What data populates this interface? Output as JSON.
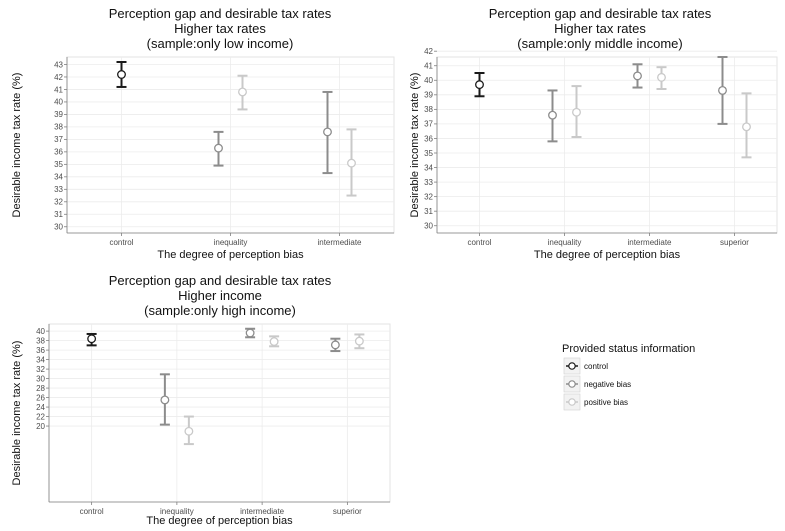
{
  "chart_data": [
    {
      "type": "scatter",
      "title": "Perception gap and desirable tax rates",
      "subtitle": [
        "Higher tax rates",
        "(sample:only low income)"
      ],
      "xlabel": "The degree of perception bias",
      "ylabel": "Desirable income tax rate (%)",
      "categories": [
        "control",
        "inequality",
        "intermediate"
      ],
      "ylim": [
        29.5,
        43.6
      ],
      "yticks": [
        30,
        31,
        32,
        33,
        34,
        35,
        36,
        37,
        38,
        39,
        40,
        41,
        42,
        43
      ],
      "grid": true,
      "series": [
        {
          "name": "control",
          "points": [
            {
              "x": "control",
              "y": 42.2,
              "low": 41.2,
              "high": 43.2
            }
          ]
        },
        {
          "name": "negative bias",
          "points": [
            {
              "x": "inequality",
              "y": 36.3,
              "low": 34.9,
              "high": 37.6
            },
            {
              "x": "intermediate",
              "y": 37.6,
              "low": 34.3,
              "high": 40.8
            }
          ]
        },
        {
          "name": "positive bias",
          "points": [
            {
              "x": "inequality",
              "y": 40.8,
              "low": 39.4,
              "high": 42.1
            },
            {
              "x": "intermediate",
              "y": 35.1,
              "low": 32.5,
              "high": 37.8
            }
          ]
        }
      ]
    },
    {
      "type": "scatter",
      "title": "Perception gap and desirable tax rates",
      "subtitle": [
        "Higher tax rates",
        "(sample:only middle income)"
      ],
      "xlabel": "The degree of perception bias",
      "ylabel": "Desirable income tax rate (%)",
      "categories": [
        "control",
        "inequality",
        "intermediate",
        "superior"
      ],
      "ylim": [
        29.5,
        41.6
      ],
      "yticks": [
        30,
        31,
        32,
        33,
        34,
        35,
        36,
        37,
        38,
        39,
        40,
        41,
        42
      ],
      "grid": true,
      "series": [
        {
          "name": "control",
          "points": [
            {
              "x": "control",
              "y": 39.7,
              "low": 38.9,
              "high": 40.5
            }
          ]
        },
        {
          "name": "negative bias",
          "points": [
            {
              "x": "inequality",
              "y": 37.6,
              "low": 35.8,
              "high": 39.3
            },
            {
              "x": "intermediate",
              "y": 40.3,
              "low": 39.5,
              "high": 41.1
            },
            {
              "x": "superior",
              "y": 39.3,
              "low": 37.0,
              "high": 41.6
            }
          ]
        },
        {
          "name": "positive bias",
          "points": [
            {
              "x": "inequality",
              "y": 37.8,
              "low": 36.1,
              "high": 39.6
            },
            {
              "x": "intermediate",
              "y": 40.2,
              "low": 39.4,
              "high": 40.9
            },
            {
              "x": "superior",
              "y": 36.8,
              "low": 34.7,
              "high": 39.1
            }
          ]
        }
      ]
    },
    {
      "type": "scatter",
      "title": "Perception gap and desirable tax rates",
      "subtitle": [
        "Higher income",
        "(sample:only high income)"
      ],
      "xlabel": "The degree of perception bias",
      "ylabel": "Desirable income tax rate (%)",
      "categories": [
        "control",
        "inequality",
        "intermediate",
        "superior"
      ],
      "ylim": [
        4,
        41.5
      ],
      "yticks": [
        20,
        22,
        24,
        26,
        28,
        30,
        32,
        34,
        36,
        38,
        40
      ],
      "grid": true,
      "series": [
        {
          "name": "control",
          "points": [
            {
              "x": "control",
              "y": 38.4,
              "low": 37.0,
              "high": 39.4
            }
          ]
        },
        {
          "name": "negative bias",
          "points": [
            {
              "x": "inequality",
              "y": 25.5,
              "low": 20.3,
              "high": 30.9
            },
            {
              "x": "intermediate",
              "y": 39.6,
              "low": 38.7,
              "high": 40.5
            },
            {
              "x": "superior",
              "y": 37.1,
              "low": 35.8,
              "high": 38.4
            }
          ]
        },
        {
          "name": "positive bias",
          "points": [
            {
              "x": "inequality",
              "y": 18.9,
              "low": 16.2,
              "high": 22.0
            },
            {
              "x": "intermediate",
              "y": 37.8,
              "low": 36.8,
              "high": 38.9
            },
            {
              "x": "superior",
              "y": 37.9,
              "low": 36.4,
              "high": 39.3
            }
          ]
        }
      ]
    }
  ],
  "legend": {
    "title": "Provided status information",
    "items": [
      {
        "label": "control",
        "color": "#1a1a1a"
      },
      {
        "label": "negative bias",
        "color": "#8c8c8c"
      },
      {
        "label": "positive bias",
        "color": "#c9c9c9"
      }
    ],
    "placement": "bottom-right"
  },
  "colors": {
    "control": "#1a1a1a",
    "negative bias": "#8c8c8c",
    "positive bias": "#c9c9c9"
  }
}
